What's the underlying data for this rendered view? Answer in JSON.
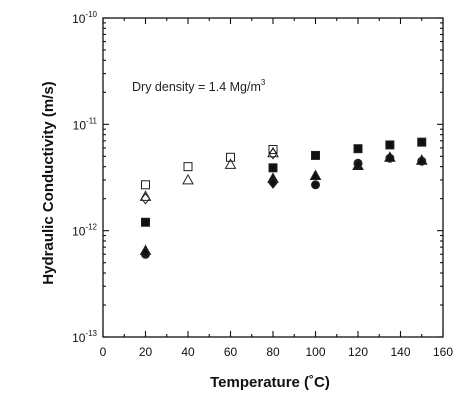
{
  "chart_data": {
    "type": "scatter",
    "xlabel": "Temperature  (˚C)",
    "ylabel": "Hydraulic Conductivity  (m/s)",
    "xlim": [
      0,
      160
    ],
    "ylim": [
      1e-13,
      1e-10
    ],
    "yscale": "log",
    "x_ticks": [
      "0",
      "20",
      "40",
      "60",
      "80",
      "100",
      "120",
      "140",
      "160"
    ],
    "y_ticks": [
      {
        "base": "10",
        "exp": "-13"
      },
      {
        "base": "10",
        "exp": "-12"
      },
      {
        "base": "10",
        "exp": "-11"
      },
      {
        "base": "10",
        "exp": "-10"
      }
    ],
    "annotation": {
      "text": "Dry density = 1.4 Mg/m",
      "sup": "3"
    },
    "series": [
      {
        "marker": "open-square",
        "x": [
          20,
          40,
          60,
          80
        ],
        "y": [
          2.7e-12,
          4e-12,
          4.9e-12,
          5.8e-12
        ]
      },
      {
        "marker": "open-diamond",
        "x": [
          20,
          80
        ],
        "y": [
          2e-12,
          5.3e-12
        ]
      },
      {
        "marker": "open-triangle",
        "x": [
          20,
          40,
          60,
          80
        ],
        "y": [
          2.1e-12,
          3e-12,
          4.2e-12,
          5.4e-12
        ]
      },
      {
        "marker": "filled-square",
        "x": [
          20,
          80,
          100,
          120,
          135,
          150
        ],
        "y": [
          1.2e-12,
          3.9e-12,
          5.1e-12,
          5.9e-12,
          6.4e-12,
          6.8e-12
        ]
      },
      {
        "marker": "filled-circle",
        "x": [
          20,
          80,
          100,
          120,
          135,
          150
        ],
        "y": [
          6e-13,
          2.9e-12,
          2.7e-12,
          4.3e-12,
          4.8e-12,
          4.5e-12
        ]
      },
      {
        "marker": "filled-triangle",
        "x": [
          20,
          80,
          100,
          120,
          135,
          150
        ],
        "y": [
          6.5e-13,
          3.1e-12,
          3.3e-12,
          4.1e-12,
          4.9e-12,
          4.6e-12
        ]
      },
      {
        "marker": "filled-diamond",
        "x": [
          20,
          80,
          120
        ],
        "y": [
          6.2e-13,
          2.8e-12,
          4.2e-12
        ]
      }
    ]
  }
}
